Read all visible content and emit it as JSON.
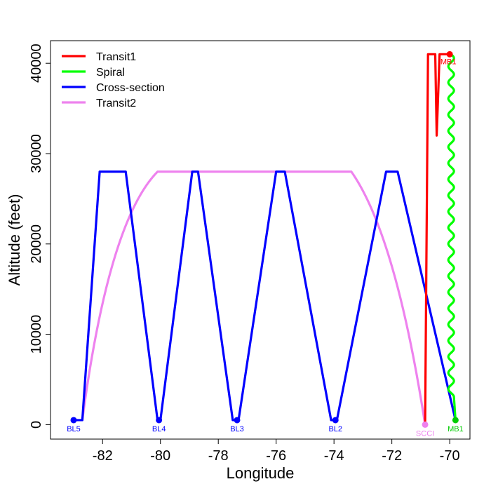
{
  "chart_data": {
    "type": "line",
    "xlabel": "Longitude",
    "ylabel": "Altitude (feet)",
    "xlim": [
      -83.8,
      -69.3
    ],
    "ylim": [
      -1600,
      42500
    ],
    "x_ticks": [
      -82,
      -80,
      -78,
      -76,
      -74,
      -72,
      -70
    ],
    "y_ticks": [
      0,
      10000,
      20000,
      30000,
      40000
    ],
    "legend_position": "top-left",
    "series": [
      {
        "name": "Transit1",
        "color": "#ff0000",
        "points": [
          [
            -70.85,
            0
          ],
          [
            -70.75,
            41000
          ],
          [
            -70.5,
            41000
          ],
          [
            -70.45,
            32000
          ],
          [
            -70.35,
            41000
          ],
          [
            -70.0,
            41000
          ]
        ]
      },
      {
        "name": "Spiral",
        "color": "#00ff00",
        "wavy": true,
        "points": [
          [
            -69.95,
            41000
          ],
          [
            -69.95,
            3000
          ],
          [
            -69.8,
            500
          ]
        ]
      },
      {
        "name": "Cross-section",
        "color": "#0000ff",
        "points": [
          [
            -83.0,
            500
          ],
          [
            -82.7,
            500
          ],
          [
            -82.1,
            28000
          ],
          [
            -81.2,
            28000
          ],
          [
            -80.1,
            500
          ],
          [
            -80.0,
            500
          ],
          [
            -78.9,
            28000
          ],
          [
            -78.7,
            28000
          ],
          [
            -77.5,
            500
          ],
          [
            -77.3,
            500
          ],
          [
            -76.0,
            28000
          ],
          [
            -75.7,
            28000
          ],
          [
            -74.1,
            500
          ],
          [
            -73.9,
            500
          ],
          [
            -72.2,
            28000
          ],
          [
            -71.8,
            28000
          ],
          [
            -69.8,
            500
          ]
        ]
      },
      {
        "name": "Transit2",
        "color": "#ee82ee",
        "curved": true,
        "points": [
          [
            -82.7,
            500
          ],
          [
            -80.1,
            28000
          ],
          [
            -73.4,
            28000
          ],
          [
            -70.85,
            0
          ]
        ]
      }
    ],
    "waypoints": [
      {
        "label": "BL5",
        "x": -83.0,
        "y": 500,
        "color": "#0000ff"
      },
      {
        "label": "BL4",
        "x": -80.05,
        "y": 500,
        "color": "#0000ff"
      },
      {
        "label": "BL3",
        "x": -77.35,
        "y": 500,
        "color": "#0000ff"
      },
      {
        "label": "BL2",
        "x": -73.95,
        "y": 500,
        "color": "#0000ff"
      },
      {
        "label": "SCCI",
        "x": -70.85,
        "y": 0,
        "color": "#ee82ee"
      },
      {
        "label": "MB1",
        "x": -69.8,
        "y": 500,
        "color": "#00cc00"
      },
      {
        "label": "MB1",
        "x": -70.0,
        "y": 41000,
        "color": "#ff0000"
      }
    ]
  }
}
